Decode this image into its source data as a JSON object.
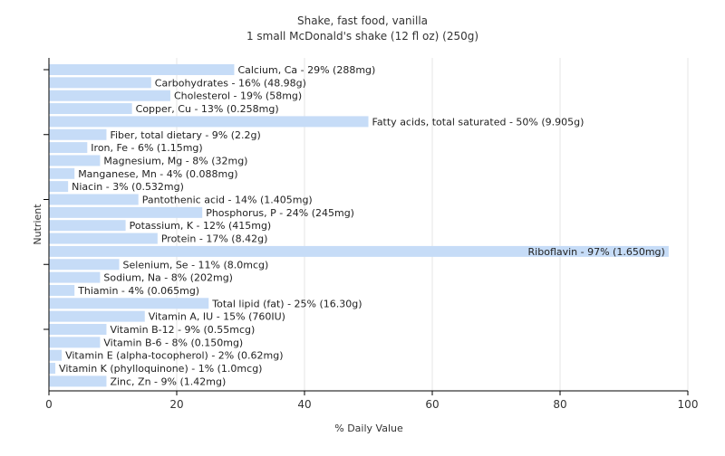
{
  "chart_data": {
    "type": "bar",
    "orientation": "horizontal",
    "title": "Shake, fast food, vanilla",
    "subtitle": "1 small McDonald's shake (12 fl oz) (250g)",
    "xlabel": "% Daily Value",
    "ylabel": "Nutrient",
    "xlim": [
      0,
      100
    ],
    "xticks": [
      0,
      20,
      40,
      60,
      80,
      100
    ],
    "grid": true,
    "bar_color": "#c6dcf7",
    "categories": [
      "Calcium, Ca - 29% (288mg)",
      "Carbohydrates - 16% (48.98g)",
      "Cholesterol - 19% (58mg)",
      "Copper, Cu - 13% (0.258mg)",
      "Fatty acids, total saturated - 50% (9.905g)",
      "Fiber, total dietary - 9% (2.2g)",
      "Iron, Fe - 6% (1.15mg)",
      "Magnesium, Mg - 8% (32mg)",
      "Manganese, Mn - 4% (0.088mg)",
      "Niacin - 3% (0.532mg)",
      "Pantothenic acid - 14% (1.405mg)",
      "Phosphorus, P - 24% (245mg)",
      "Potassium, K - 12% (415mg)",
      "Protein - 17% (8.42g)",
      "Riboflavin - 97% (1.650mg)",
      "Selenium, Se - 11% (8.0mcg)",
      "Sodium, Na - 8% (202mg)",
      "Thiamin - 4% (0.065mg)",
      "Total lipid (fat) - 25% (16.30g)",
      "Vitamin A, IU - 15% (760IU)",
      "Vitamin B-12 - 9% (0.55mcg)",
      "Vitamin B-6 - 8% (0.150mg)",
      "Vitamin E (alpha-tocopherol) - 2% (0.62mg)",
      "Vitamin K (phylloquinone) - 1% (1.0mcg)",
      "Zinc, Zn - 9% (1.42mg)"
    ],
    "values": [
      29,
      16,
      19,
      13,
      50,
      9,
      6,
      8,
      4,
      3,
      14,
      24,
      12,
      17,
      97,
      11,
      8,
      4,
      25,
      15,
      9,
      8,
      2,
      1,
      9
    ]
  }
}
